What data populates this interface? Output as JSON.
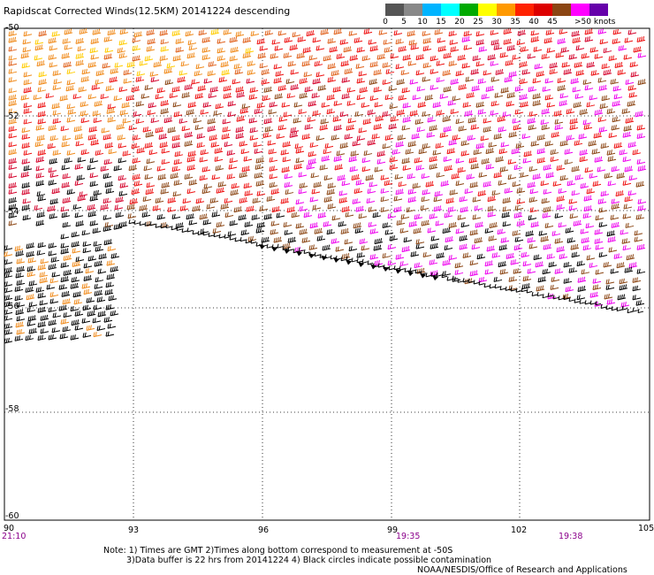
{
  "title": "Rapidscat Corrected Winds(12.5KM) 20141224 descending",
  "legend": {
    "labels": [
      "0",
      "5",
      "10",
      "15",
      "20",
      "25",
      "30",
      "35",
      "40",
      "45",
      ">50 knots"
    ],
    "colors": [
      "#555555",
      "#888888",
      "#00b4ff",
      "#00ffff",
      "#00aa00",
      "#ffff00",
      "#ff9900",
      "#ff2200",
      "#dd0000",
      "#8b4513",
      "#ff00ff",
      "#6600aa"
    ]
  },
  "axes": {
    "lat_labels": [
      "-50",
      "-52",
      "-54",
      "-56",
      "-58",
      "-60"
    ],
    "lon_labels": [
      "90",
      "93",
      "96",
      "99",
      "102",
      "105"
    ],
    "time_labels": [
      "21:10",
      "19:35",
      "19:38"
    ]
  },
  "map": {
    "barb_color_scheme": "wind speed",
    "background": "#ffffff",
    "grid": "dotted"
  },
  "notes": {
    "line1": "Note: 1) Times are GMT 2)Times along bottom correspond to measurement at -50S",
    "line2": "3)Data buffer is 22 hrs from 20141224 4) Black circles indicate possible contamination",
    "credit": "NOAA/NESDIS/Office of Research and Applications"
  }
}
